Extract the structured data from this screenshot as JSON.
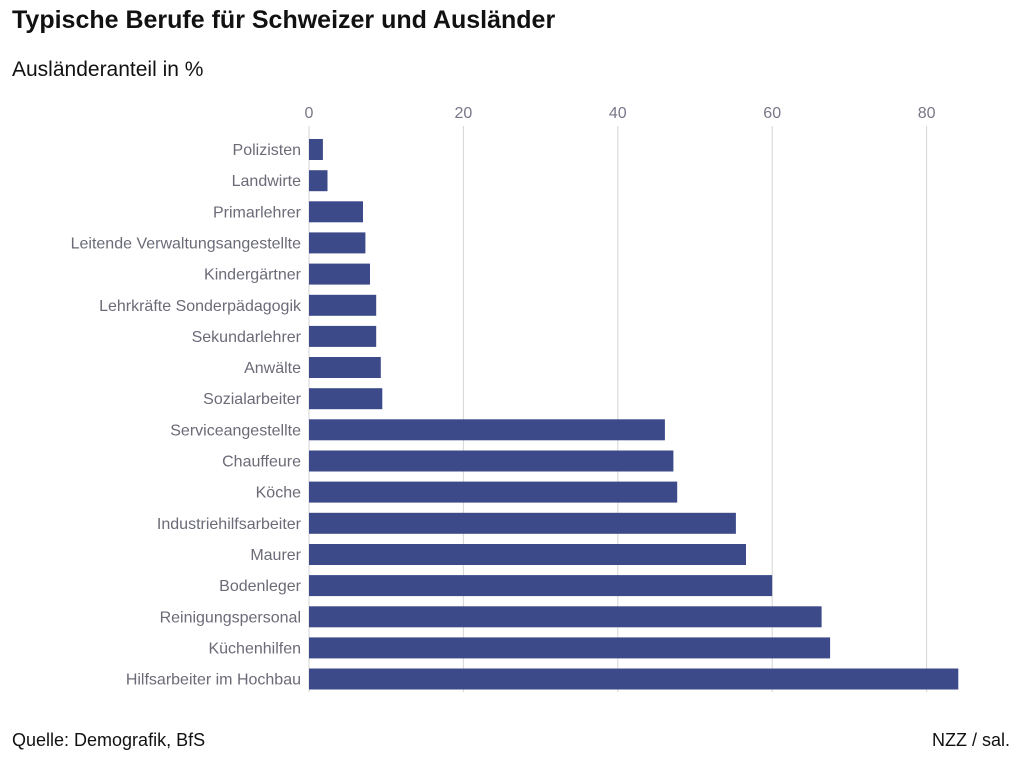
{
  "chart_data": {
    "type": "bar",
    "orientation": "horizontal",
    "title": "Typische Berufe für Schweizer und Ausländer",
    "subtitle": "Ausländeranteil in %",
    "xlim": [
      0,
      85
    ],
    "xticks": [
      0,
      20,
      40,
      60,
      80
    ],
    "grid": true,
    "legend": "none",
    "bar_color": "#3d4a8a",
    "categories": [
      "Polizisten",
      "Landwirte",
      "Primarlehrer",
      "Leitende Verwaltungsangestellte",
      "Kindergärtner",
      "Lehrkräfte Sonderpädagogik",
      "Sekundarlehrer",
      "Anwälte",
      "Sozialarbeiter",
      "Serviceangestellte",
      "Chauffeure",
      "Köche",
      "Industriehilfsarbeiter",
      "Maurer",
      "Bodenleger",
      "Reinigungspersonal",
      "Küchenhilfen",
      "Hilfsarbeiter im Hochbau"
    ],
    "values": [
      1.8,
      2.4,
      7.0,
      7.3,
      7.9,
      8.7,
      8.7,
      9.3,
      9.5,
      46.1,
      47.2,
      47.7,
      55.3,
      56.6,
      60.0,
      66.4,
      67.5,
      84.1
    ]
  },
  "footer": {
    "source": "Quelle: Demografik, BfS",
    "credit": "NZZ / sal."
  }
}
